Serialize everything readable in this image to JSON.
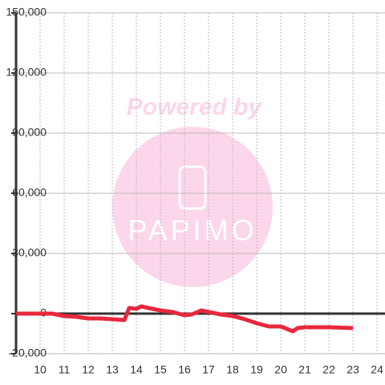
{
  "chart_data": {
    "type": "line",
    "watermark": {
      "title": "Powered by",
      "brand": "PAPIMO"
    },
    "x": [
      9,
      10.5,
      11,
      11.5,
      12,
      12.5,
      13,
      13.5,
      13.7,
      14,
      14.2,
      14.5,
      15,
      15.5,
      16,
      16.3,
      16.7,
      17,
      17.5,
      18,
      18.5,
      19,
      19.5,
      20,
      20.5,
      20.7,
      21,
      22,
      23
    ],
    "series": [
      {
        "color": "#e8283c",
        "values": [
          0,
          0,
          -1200,
          -1600,
          -2400,
          -2400,
          -2800,
          -3200,
          2800,
          2400,
          3600,
          2800,
          1600,
          800,
          -800,
          -400,
          1600,
          800,
          -400,
          -1200,
          -2800,
          -4800,
          -6400,
          -6400,
          -8800,
          -7200,
          -6800,
          -6800,
          -7200
        ]
      }
    ],
    "xlim": [
      9,
      24.33
    ],
    "xticks": [
      10,
      11,
      12,
      13,
      14,
      15,
      16,
      17,
      18,
      19,
      20,
      21,
      22,
      23,
      24
    ],
    "ylim": [
      -20000,
      150000
    ],
    "yticks": [
      {
        "value": -20000,
        "label": "-20,000"
      },
      0,
      {
        "value": 30000,
        "label": "30,000"
      },
      {
        "value": 60000,
        "label": "60,000"
      },
      {
        "value": 90000,
        "label": "90,000"
      },
      {
        "value": 120000,
        "label": "120,000"
      },
      {
        "value": 150000,
        "label": "150,000"
      }
    ],
    "grid": true
  }
}
